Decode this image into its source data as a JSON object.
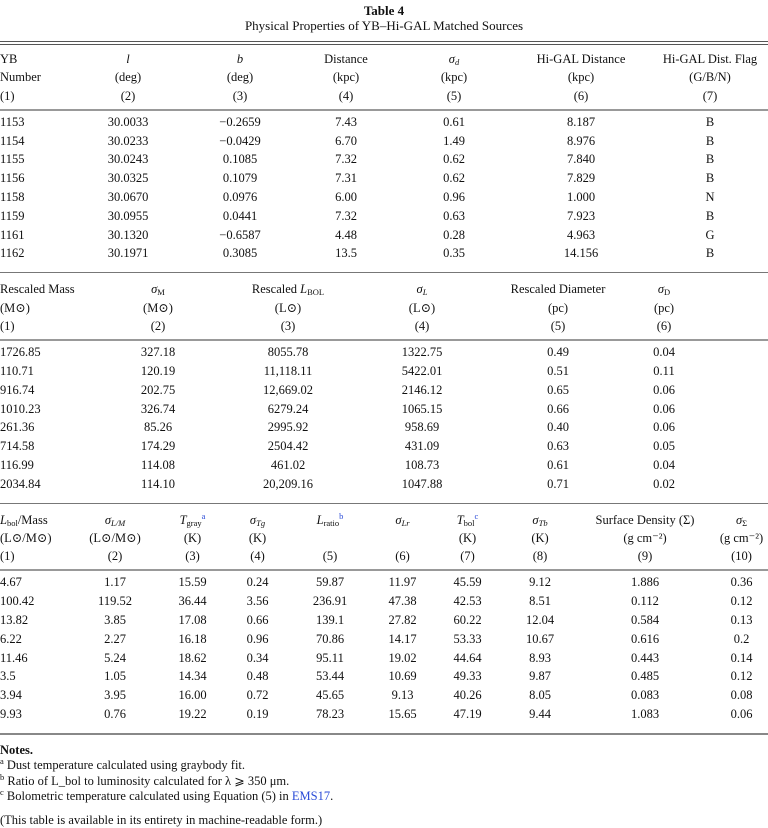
{
  "title": "Table 4",
  "subtitle": "Physical Properties of YB–Hi-GAL Matched Sources",
  "sections": [
    {
      "widths": [
        70,
        116,
        108,
        104,
        112,
        142,
        116
      ],
      "headers": [
        {
          "label": [
            {
              "t": "YB"
            }
          ],
          "unit": "Number",
          "num": "(1)"
        },
        {
          "label": [
            {
              "t": "l",
              "i": true
            }
          ],
          "unit": "(deg)",
          "num": "(2)"
        },
        {
          "label": [
            {
              "t": "b",
              "i": true
            }
          ],
          "unit": "(deg)",
          "num": "(3)"
        },
        {
          "label": [
            {
              "t": "Distance"
            }
          ],
          "unit": "(kpc)",
          "num": "(4)"
        },
        {
          "label": [
            {
              "t": "σ",
              "i": true
            },
            {
              "t": "d",
              "sub": true,
              "i": true
            }
          ],
          "unit": "(kpc)",
          "num": "(5)"
        },
        {
          "label": [
            {
              "t": "Hi-GAL Distance"
            }
          ],
          "unit": "(kpc)",
          "num": "(6)"
        },
        {
          "label": [
            {
              "t": "Hi-GAL Dist. Flag"
            }
          ],
          "unit": "(G/B/N)",
          "num": "(7)"
        }
      ],
      "rows": [
        [
          "1153",
          "30.0033",
          "−0.2659",
          "7.43",
          "0.61",
          "8.187",
          "B"
        ],
        [
          "1154",
          "30.0233",
          "−0.0429",
          "6.70",
          "1.49",
          "8.976",
          "B"
        ],
        [
          "1155",
          "30.0243",
          "0.1085",
          "7.32",
          "0.62",
          "7.840",
          "B"
        ],
        [
          "1156",
          "30.0325",
          "0.1079",
          "7.31",
          "0.62",
          "7.829",
          "B"
        ],
        [
          "1158",
          "30.0670",
          "0.0976",
          "6.00",
          "0.96",
          "1.000",
          "N"
        ],
        [
          "1159",
          "30.0955",
          "0.0441",
          "7.32",
          "0.63",
          "7.923",
          "B"
        ],
        [
          "1161",
          "30.1320",
          "−0.6587",
          "4.48",
          "0.28",
          "4.963",
          "G"
        ],
        [
          "1162",
          "30.1971",
          "0.3085",
          "13.5",
          "0.35",
          "14.156",
          "B"
        ]
      ]
    },
    {
      "widths": [
        100,
        116,
        144,
        124,
        148,
        64,
        72
      ],
      "headers": [
        {
          "label": [
            {
              "t": "Rescaled Mass"
            }
          ],
          "unit": "(M⊙)",
          "num": "(1)"
        },
        {
          "label": [
            {
              "t": "σ",
              "i": true
            },
            {
              "t": "M",
              "sub": true
            }
          ],
          "unit": "(M⊙)",
          "num": "(2)"
        },
        {
          "label": [
            {
              "t": "Rescaled "
            },
            {
              "t": "L",
              "i": true
            },
            {
              "t": "BOL",
              "sub": true
            }
          ],
          "unit": "(L⊙)",
          "num": "(3)"
        },
        {
          "label": [
            {
              "t": "σ",
              "i": true
            },
            {
              "t": "L",
              "sub": true,
              "i": true
            }
          ],
          "unit": "(L⊙)",
          "num": "(4)"
        },
        {
          "label": [
            {
              "t": "Rescaled Diameter"
            }
          ],
          "unit": "(pc)",
          "num": "(5)"
        },
        {
          "label": [
            {
              "t": "σ",
              "i": true
            },
            {
              "t": "D",
              "sub": true
            }
          ],
          "unit": "(pc)",
          "num": "(6)"
        },
        {
          "label": [],
          "unit": "",
          "num": ""
        }
      ],
      "rows": [
        [
          "1726.85",
          "327.18",
          "8055.78",
          "1322.75",
          "0.49",
          "0.04",
          ""
        ],
        [
          "110.71",
          "120.19",
          "11,118.11",
          "5422.01",
          "0.51",
          "0.11",
          ""
        ],
        [
          "916.74",
          "202.75",
          "12,669.02",
          "2146.12",
          "0.65",
          "0.06",
          ""
        ],
        [
          "1010.23",
          "326.74",
          "6279.24",
          "1065.15",
          "0.66",
          "0.06",
          ""
        ],
        [
          "261.36",
          "85.26",
          "2995.92",
          "958.69",
          "0.40",
          "0.06",
          ""
        ],
        [
          "714.58",
          "174.29",
          "2504.42",
          "431.09",
          "0.63",
          "0.05",
          ""
        ],
        [
          "116.99",
          "114.08",
          "461.02",
          "108.73",
          "0.61",
          "0.04",
          ""
        ],
        [
          "2034.84",
          "114.10",
          "20,209.16",
          "1047.88",
          "0.71",
          "0.02",
          ""
        ]
      ]
    },
    {
      "widths": [
        75,
        80,
        75,
        55,
        90,
        55,
        75,
        70,
        140,
        53
      ],
      "headers": [
        {
          "label": [
            {
              "t": "L",
              "i": true
            },
            {
              "t": "bol",
              "sub": true
            },
            {
              "t": "/Mass"
            }
          ],
          "unit": "(L⊙/M⊙)",
          "num": "(1)"
        },
        {
          "label": [
            {
              "t": "σ",
              "i": true
            },
            {
              "t": "L/M",
              "sub": true,
              "i": true
            }
          ],
          "unit": "(L⊙/M⊙)",
          "num": "(2)"
        },
        {
          "label": [
            {
              "t": "T",
              "i": true
            },
            {
              "t": "gray",
              "sub": true
            },
            {
              "t": "a",
              "sup": true,
              "fn": true
            }
          ],
          "unit": "(K)",
          "num": "(3)"
        },
        {
          "label": [
            {
              "t": "σ",
              "i": true
            },
            {
              "t": "Tg",
              "sub": true,
              "i": true
            }
          ],
          "unit": "(K)",
          "num": "(4)"
        },
        {
          "label": [
            {
              "t": "L",
              "i": true
            },
            {
              "t": "ratio",
              "sub": true
            },
            {
              "t": "b",
              "sup": true,
              "fn": true
            }
          ],
          "unit": "",
          "num": "(5)"
        },
        {
          "label": [
            {
              "t": "σ",
              "i": true
            },
            {
              "t": "Lr",
              "sub": true,
              "i": true
            }
          ],
          "unit": "",
          "num": "(6)"
        },
        {
          "label": [
            {
              "t": "T",
              "i": true
            },
            {
              "t": "bol",
              "sub": true
            },
            {
              "t": "c",
              "sup": true,
              "fn": true
            }
          ],
          "unit": "(K)",
          "num": "(7)"
        },
        {
          "label": [
            {
              "t": "σ",
              "i": true
            },
            {
              "t": "Tb",
              "sub": true,
              "i": true
            }
          ],
          "unit": "(K)",
          "num": "(8)"
        },
        {
          "label": [
            {
              "t": "Surface Density (Σ)"
            }
          ],
          "unit": "(g cm⁻²)",
          "num": "(9)"
        },
        {
          "label": [
            {
              "t": "σ",
              "i": true
            },
            {
              "t": "Σ",
              "sub": true
            }
          ],
          "unit": "(g cm⁻²)",
          "num": "(10)"
        }
      ],
      "rows": [
        [
          "4.67",
          "1.17",
          "15.59",
          "0.24",
          "59.87",
          "11.97",
          "45.59",
          "9.12",
          "1.886",
          "0.36"
        ],
        [
          "100.42",
          "119.52",
          "36.44",
          "3.56",
          "236.91",
          "47.38",
          "42.53",
          "8.51",
          "0.112",
          "0.12"
        ],
        [
          "13.82",
          "3.85",
          "17.08",
          "0.66",
          "139.1",
          "27.82",
          "60.22",
          "12.04",
          "0.584",
          "0.13"
        ],
        [
          "6.22",
          "2.27",
          "16.18",
          "0.96",
          "70.86",
          "14.17",
          "53.33",
          "10.67",
          "0.616",
          "0.2"
        ],
        [
          "11.46",
          "5.24",
          "18.62",
          "0.34",
          "95.11",
          "19.02",
          "44.64",
          "8.93",
          "0.443",
          "0.14"
        ],
        [
          "3.5",
          "1.05",
          "14.34",
          "0.48",
          "53.44",
          "10.69",
          "49.33",
          "9.87",
          "0.485",
          "0.12"
        ],
        [
          "3.94",
          "3.95",
          "16.00",
          "0.72",
          "45.65",
          "9.13",
          "40.26",
          "8.05",
          "0.083",
          "0.08"
        ],
        [
          "9.93",
          "0.76",
          "19.22",
          "0.19",
          "78.23",
          "15.65",
          "47.19",
          "9.44",
          "1.083",
          "0.06"
        ]
      ]
    }
  ],
  "notes": {
    "heading": "Notes.",
    "items": [
      {
        "mark": "a",
        "text": "Dust temperature calculated using graybody fit."
      },
      {
        "mark": "b",
        "text": "Ratio of L_bol to luminosity calculated for λ ⩾ 350 μm."
      },
      {
        "mark": "c",
        "text": "Bolometric temperature calculated using Equation (5) in ",
        "link": "EMS17",
        "after": "."
      }
    ],
    "availability": "(This table is available in its entirety in machine-readable form.)"
  }
}
